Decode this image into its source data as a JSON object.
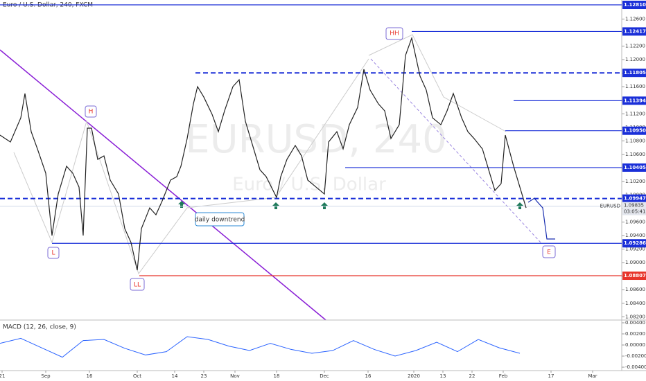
{
  "chart_data": {
    "type": "line",
    "title": "Euro / U.S. Dollar, 240, FXCM",
    "watermark": [
      "EURUSD, 240",
      "Euro / U.S. Dollar"
    ],
    "xlim": [
      0,
      299
    ],
    "xticks": [
      {
        "value": 1,
        "label": "21"
      },
      {
        "value": 22,
        "label": "Sep"
      },
      {
        "value": 43,
        "label": "16"
      },
      {
        "value": 66,
        "label": "Oct"
      },
      {
        "value": 84,
        "label": "14"
      },
      {
        "value": 98,
        "label": "23"
      },
      {
        "value": 113,
        "label": "Nov"
      },
      {
        "value": 133,
        "label": "18"
      },
      {
        "value": 156,
        "label": "Dec"
      },
      {
        "value": 177,
        "label": "16"
      },
      {
        "value": 199,
        "label": "2020"
      },
      {
        "value": 213,
        "label": "13"
      },
      {
        "value": 227,
        "label": "22"
      },
      {
        "value": 242,
        "label": "Feb"
      },
      {
        "value": 265,
        "label": "17"
      },
      {
        "value": 285,
        "label": "Mar"
      }
    ],
    "ylim": [
      1.08152,
      1.12882
    ],
    "yticks": [
      {
        "value": 1.082,
        "label": "1.08200"
      },
      {
        "value": 1.084,
        "label": "1.08400"
      },
      {
        "value": 1.086,
        "label": "1.08600"
      },
      {
        "value": 1.088,
        "label": "1.08800"
      },
      {
        "value": 1.09,
        "label": "1.09000"
      },
      {
        "value": 1.092,
        "label": "1.09200"
      },
      {
        "value": 1.094,
        "label": "1.09400"
      },
      {
        "value": 1.096,
        "label": "1.09600"
      },
      {
        "value": 1.098,
        "label": "1.09800"
      },
      {
        "value": 1.1,
        "label": "1.10000"
      },
      {
        "value": 1.102,
        "label": "1.10200"
      },
      {
        "value": 1.104,
        "label": "1.10400"
      },
      {
        "value": 1.106,
        "label": "1.10600"
      },
      {
        "value": 1.108,
        "label": "1.10800"
      },
      {
        "value": 1.11,
        "label": "1.11000"
      },
      {
        "value": 1.112,
        "label": "1.11200"
      },
      {
        "value": 1.114,
        "label": "1.11400"
      },
      {
        "value": 1.116,
        "label": "1.11600"
      },
      {
        "value": 1.118,
        "label": "1.11800"
      },
      {
        "value": 1.12,
        "label": "1.12000"
      },
      {
        "value": 1.122,
        "label": "1.12200"
      },
      {
        "value": 1.124,
        "label": "1.12400"
      },
      {
        "value": 1.126,
        "label": "1.12600"
      }
    ],
    "series": [
      {
        "color": "#222222",
        "x": [
          0,
          5,
          10,
          12,
          15,
          18,
          22,
          25,
          28,
          32,
          35,
          38,
          40,
          42,
          44,
          47,
          50,
          53,
          57,
          60,
          63,
          66,
          68,
          72,
          75,
          78,
          82,
          85,
          87,
          90,
          93,
          95,
          98,
          102,
          105,
          108,
          112,
          115,
          118,
          122,
          125,
          128,
          133,
          135,
          138,
          142,
          145,
          148,
          152,
          156,
          158,
          162,
          165,
          168,
          172,
          175,
          178,
          182,
          185,
          188,
          192,
          195,
          198,
          202,
          205,
          208,
          212,
          215,
          218,
          222,
          225,
          228,
          232,
          235,
          238,
          241,
          243,
          247,
          250,
          253
        ],
        "values": [
          1.10885,
          1.10783,
          1.11141,
          1.115,
          1.10936,
          1.10681,
          1.10322,
          1.09401,
          1.10015,
          1.10425,
          1.10322,
          1.10117,
          1.09401,
          1.10988,
          1.10988,
          1.10527,
          1.10578,
          1.1022,
          1.10015,
          1.09503,
          1.09298,
          1.08889,
          1.09503,
          1.0981,
          1.09708,
          1.09913,
          1.1022,
          1.10271,
          1.10425,
          1.10834,
          1.11346,
          1.11602,
          1.11448,
          1.11192,
          1.10936,
          1.11244,
          1.11602,
          1.11704,
          1.1109,
          1.10681,
          1.10373,
          1.10271,
          1.09964,
          1.10271,
          1.10527,
          1.10732,
          1.10578,
          1.1022,
          1.10117,
          1.10015,
          1.10783,
          1.10936,
          1.10681,
          1.11039,
          1.11295,
          1.11858,
          1.11551,
          1.11346,
          1.11244,
          1.10834,
          1.11039,
          1.12063,
          1.12319,
          1.11756,
          1.11551,
          1.11141,
          1.11039,
          1.11244,
          1.115,
          1.11141,
          1.10936,
          1.10834,
          1.10681,
          1.10373,
          1.10066,
          1.10169,
          1.10885,
          1.10425,
          1.10117,
          1.0981
        ]
      },
      {
        "color": "#1a2fb0",
        "x": [
          254,
          257,
          258,
          261,
          263,
          267
        ],
        "values": [
          1.09892,
          1.09953,
          1.09913,
          1.0981,
          1.0935,
          1.0935
        ]
      }
    ],
    "levels": [
      {
        "value": 1.1281,
        "label": "1.12810",
        "color": "#1a2fd8",
        "dashed": false,
        "start": 0
      },
      {
        "value": 1.12417,
        "label": "1.12417",
        "color": "#1a2fd8",
        "dashed": false,
        "start": 198
      },
      {
        "value": 1.11805,
        "label": "1.11805",
        "color": "#1a2fd8",
        "dashed": true,
        "start": 94
      },
      {
        "value": 1.11394,
        "label": "1.11394",
        "color": "#1a2fd8",
        "dashed": false,
        "start": 247
      },
      {
        "value": 1.1095,
        "label": "1.10950",
        "color": "#1a2fd8",
        "dashed": false,
        "start": 243
      },
      {
        "value": 1.10405,
        "label": "1.10405",
        "color": "#1a2fd8",
        "dashed": false,
        "start": 166
      },
      {
        "value": 1.09947,
        "label": "1.09947",
        "color": "#1a2fd8",
        "dashed": true,
        "start": 0
      },
      {
        "value": 1.09286,
        "label": "1.09286",
        "color": "#1a2fd8",
        "dashed": false,
        "start": 25
      },
      {
        "value": 1.08807,
        "label": "1.08807",
        "color": "#e8342a",
        "dashed": false,
        "start": 67
      }
    ],
    "last_price": {
      "symbol": "EURUSD",
      "price": {
        "value": 1.09835,
        "label": "1.09835"
      },
      "countdown": "03:05:41"
    },
    "annotations": [
      "H",
      "L",
      "LL",
      "HH",
      "E",
      "daily downtrend"
    ],
    "macd": {
      "title": "MACD (12, 26, close, 9)",
      "color": "#2962ff",
      "ylim": [
        -0.00462,
        0.0045
      ],
      "yticks": [
        {
          "value": 0.004,
          "label": "0.00400"
        },
        {
          "value": 0.002,
          "label": "0.00200"
        },
        {
          "value": 0,
          "label": "0.00000"
        },
        {
          "value": -0.002,
          "label": "-0.00200"
        },
        {
          "value": -0.004,
          "label": "-0.00400"
        }
      ],
      "x": [
        0,
        10,
        20,
        30,
        40,
        50,
        60,
        70,
        80,
        90,
        100,
        110,
        120,
        130,
        140,
        150,
        160,
        170,
        180,
        190,
        200,
        210,
        220,
        230,
        240,
        250
      ],
      "values": [
        0.0003,
        0.0012,
        -0.0005,
        -0.0022,
        0.0008,
        0.001,
        -0.0006,
        -0.0018,
        -0.0012,
        0.0015,
        0.001,
        -0.0002,
        -0.001,
        0.0003,
        -0.0008,
        -0.0015,
        -0.001,
        0.0008,
        -0.0008,
        -0.002,
        -0.001,
        0.0005,
        -0.0012,
        0.001,
        -0.0005,
        -0.0015
      ]
    }
  }
}
